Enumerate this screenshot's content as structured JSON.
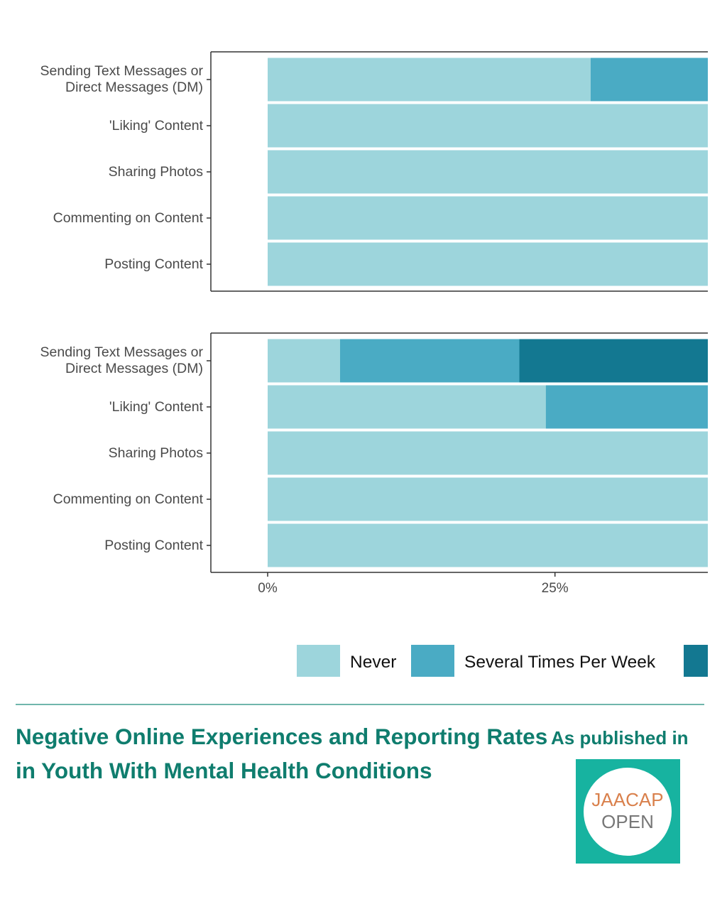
{
  "chart_data": [
    {
      "type": "bar",
      "orientation": "horizontal",
      "stacked": true,
      "categories": [
        "Sending Text Messages or Direct Messages (DM)",
        "'Liking' Content",
        "Sharing Photos",
        "Commenting on Content",
        "Posting Content"
      ],
      "series": [
        {
          "name": "Never",
          "color": "#9dd5dc",
          "values": [
            28.1,
            38.3,
            38.3,
            38.3,
            38.3
          ]
        },
        {
          "name": "Several Times Per Week",
          "color": "#4aabc4",
          "values": [
            10.2,
            0,
            0,
            0,
            0
          ]
        }
      ],
      "xlim": [
        0,
        38.3
      ]
    },
    {
      "type": "bar",
      "orientation": "horizontal",
      "stacked": true,
      "categories": [
        "Sending Text Messages or Direct Messages (DM)",
        "'Liking' Content",
        "Sharing Photos",
        "Commenting on Content",
        "Posting Content"
      ],
      "series": [
        {
          "name": "Never",
          "color": "#9dd5dc",
          "values": [
            6.3,
            24.2,
            38.3,
            38.3,
            38.3
          ]
        },
        {
          "name": "Several Times Per Week",
          "color": "#4aabc4",
          "values": [
            15.6,
            14.1,
            0,
            0,
            0
          ]
        },
        {
          "color": "#137891",
          "values": [
            16.4,
            0,
            0,
            0,
            0
          ]
        }
      ],
      "xlim": [
        0,
        38.3
      ],
      "xticks": [
        {
          "value": 0,
          "label": "0%"
        },
        {
          "value": 25,
          "label": "25%"
        }
      ]
    }
  ],
  "footer": {
    "title": "Negative Online Experiences and Reporting Rates in Youth With Mental Health Conditions",
    "published": "As published in",
    "logo_top": "JAACAP",
    "logo_bottom": "OPEN"
  }
}
